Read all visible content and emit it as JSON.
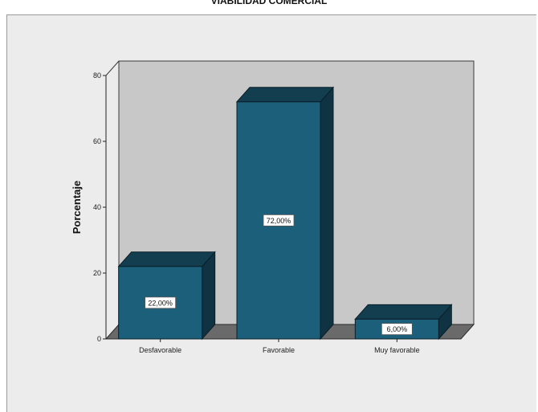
{
  "chart_data": {
    "type": "bar",
    "title": "VIABILIDAD COMERCIAL",
    "ylabel": "Porcentaje",
    "xlabel": "",
    "categories": [
      "Desfavorable",
      "Favorable",
      "Muy favorable"
    ],
    "values": [
      22,
      72,
      6
    ],
    "value_labels": [
      "22,00%",
      "72,00%",
      "6,00%"
    ],
    "ylim": [
      0,
      80
    ],
    "yticks": [
      0,
      20,
      40,
      60,
      80
    ],
    "grid": false,
    "legend": "none",
    "style": "3d",
    "colors": {
      "bar_front": "#1c5f7a",
      "bar_top": "#123e50",
      "bar_side": "#0f3342",
      "back_wall": "#c8c8c8",
      "floor": "#6a6a6a",
      "frame_bg": "#ececec"
    }
  }
}
